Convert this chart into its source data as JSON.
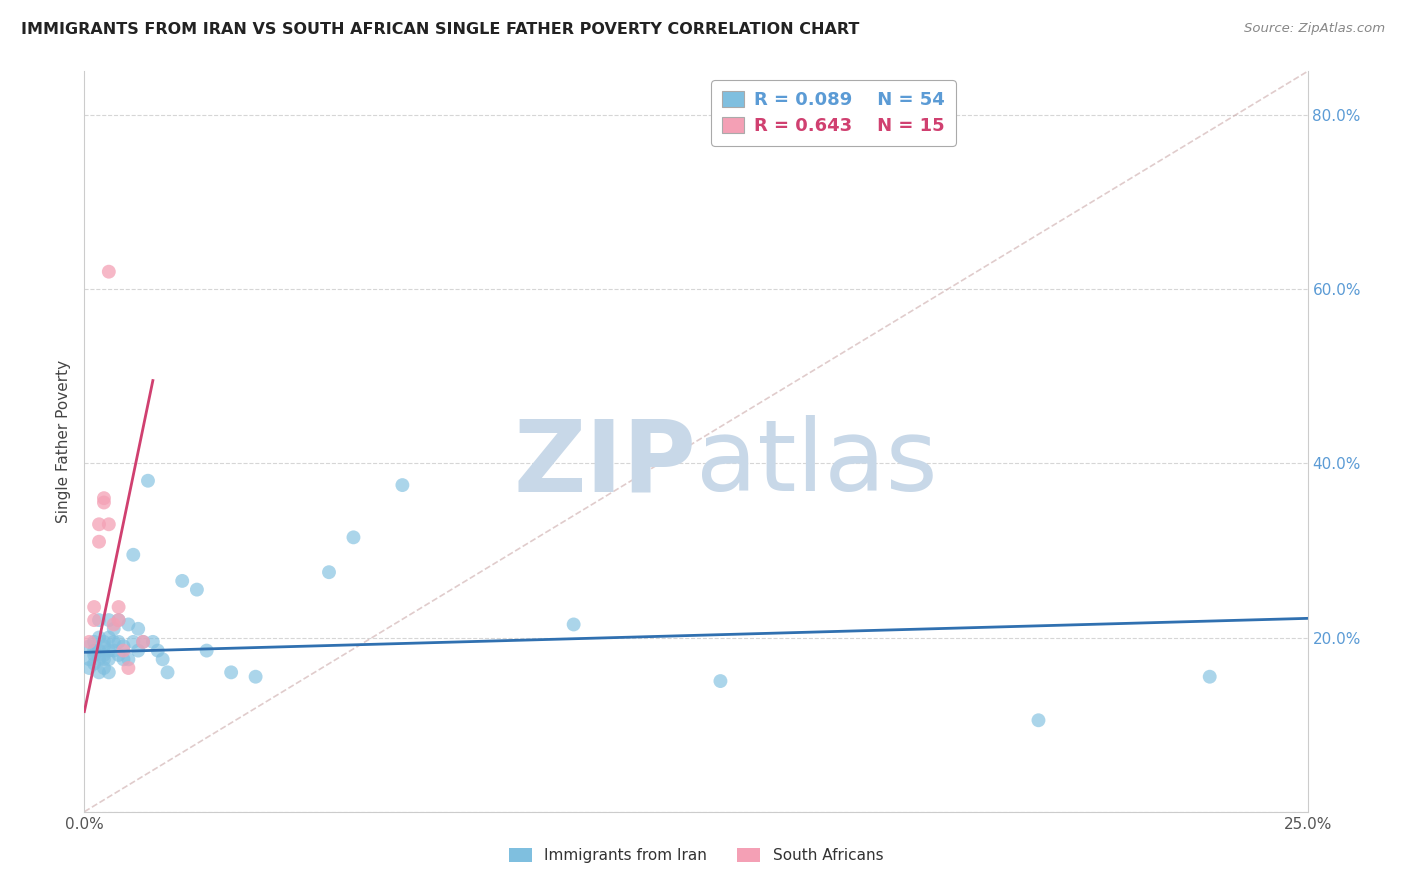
{
  "title": "IMMIGRANTS FROM IRAN VS SOUTH AFRICAN SINGLE FATHER POVERTY CORRELATION CHART",
  "source": "Source: ZipAtlas.com",
  "ylabel": "Single Father Poverty",
  "x_min": 0.0,
  "x_max": 0.25,
  "y_min": 0.0,
  "y_max": 0.85,
  "x_ticks": [
    0.0,
    0.05,
    0.1,
    0.15,
    0.2,
    0.25
  ],
  "y_ticks": [
    0.0,
    0.2,
    0.4,
    0.6,
    0.8
  ],
  "blue_color": "#7fbfdf",
  "pink_color": "#f4a0b5",
  "blue_line_color": "#3070b0",
  "pink_line_color": "#d04070",
  "dashed_line_color": "#ccaaaa",
  "grid_color": "#cccccc",
  "watermark_zip": "ZIP",
  "watermark_atlas": "atlas",
  "watermark_color_zip": "#c8d8e8",
  "watermark_color_atlas": "#c8d8e8",
  "blue_scatter_x": [
    0.001,
    0.001,
    0.001,
    0.002,
    0.002,
    0.002,
    0.002,
    0.003,
    0.003,
    0.003,
    0.003,
    0.003,
    0.004,
    0.004,
    0.004,
    0.004,
    0.004,
    0.005,
    0.005,
    0.005,
    0.005,
    0.005,
    0.006,
    0.006,
    0.006,
    0.007,
    0.007,
    0.007,
    0.008,
    0.008,
    0.009,
    0.009,
    0.01,
    0.01,
    0.011,
    0.011,
    0.012,
    0.013,
    0.014,
    0.015,
    0.016,
    0.017,
    0.02,
    0.023,
    0.025,
    0.03,
    0.035,
    0.05,
    0.055,
    0.065,
    0.1,
    0.13,
    0.195,
    0.23
  ],
  "blue_scatter_y": [
    0.175,
    0.19,
    0.165,
    0.18,
    0.195,
    0.17,
    0.185,
    0.2,
    0.175,
    0.22,
    0.16,
    0.185,
    0.19,
    0.18,
    0.195,
    0.175,
    0.165,
    0.2,
    0.185,
    0.175,
    0.16,
    0.22,
    0.185,
    0.195,
    0.21,
    0.18,
    0.22,
    0.195,
    0.175,
    0.19,
    0.215,
    0.175,
    0.295,
    0.195,
    0.21,
    0.185,
    0.195,
    0.38,
    0.195,
    0.185,
    0.175,
    0.16,
    0.265,
    0.255,
    0.185,
    0.16,
    0.155,
    0.275,
    0.315,
    0.375,
    0.215,
    0.15,
    0.105,
    0.155
  ],
  "pink_scatter_x": [
    0.001,
    0.002,
    0.002,
    0.003,
    0.003,
    0.004,
    0.004,
    0.005,
    0.005,
    0.006,
    0.007,
    0.007,
    0.008,
    0.009,
    0.012
  ],
  "pink_scatter_y": [
    0.195,
    0.22,
    0.235,
    0.31,
    0.33,
    0.355,
    0.36,
    0.62,
    0.33,
    0.215,
    0.22,
    0.235,
    0.185,
    0.165,
    0.195
  ],
  "blue_trendline_x": [
    0.0,
    0.25
  ],
  "blue_trendline_y": [
    0.183,
    0.222
  ],
  "pink_trendline_x": [
    0.0,
    0.014
  ],
  "pink_trendline_y": [
    0.115,
    0.495
  ],
  "dashed_line_x": [
    0.0,
    0.25
  ],
  "dashed_line_y": [
    0.0,
    0.85
  ]
}
